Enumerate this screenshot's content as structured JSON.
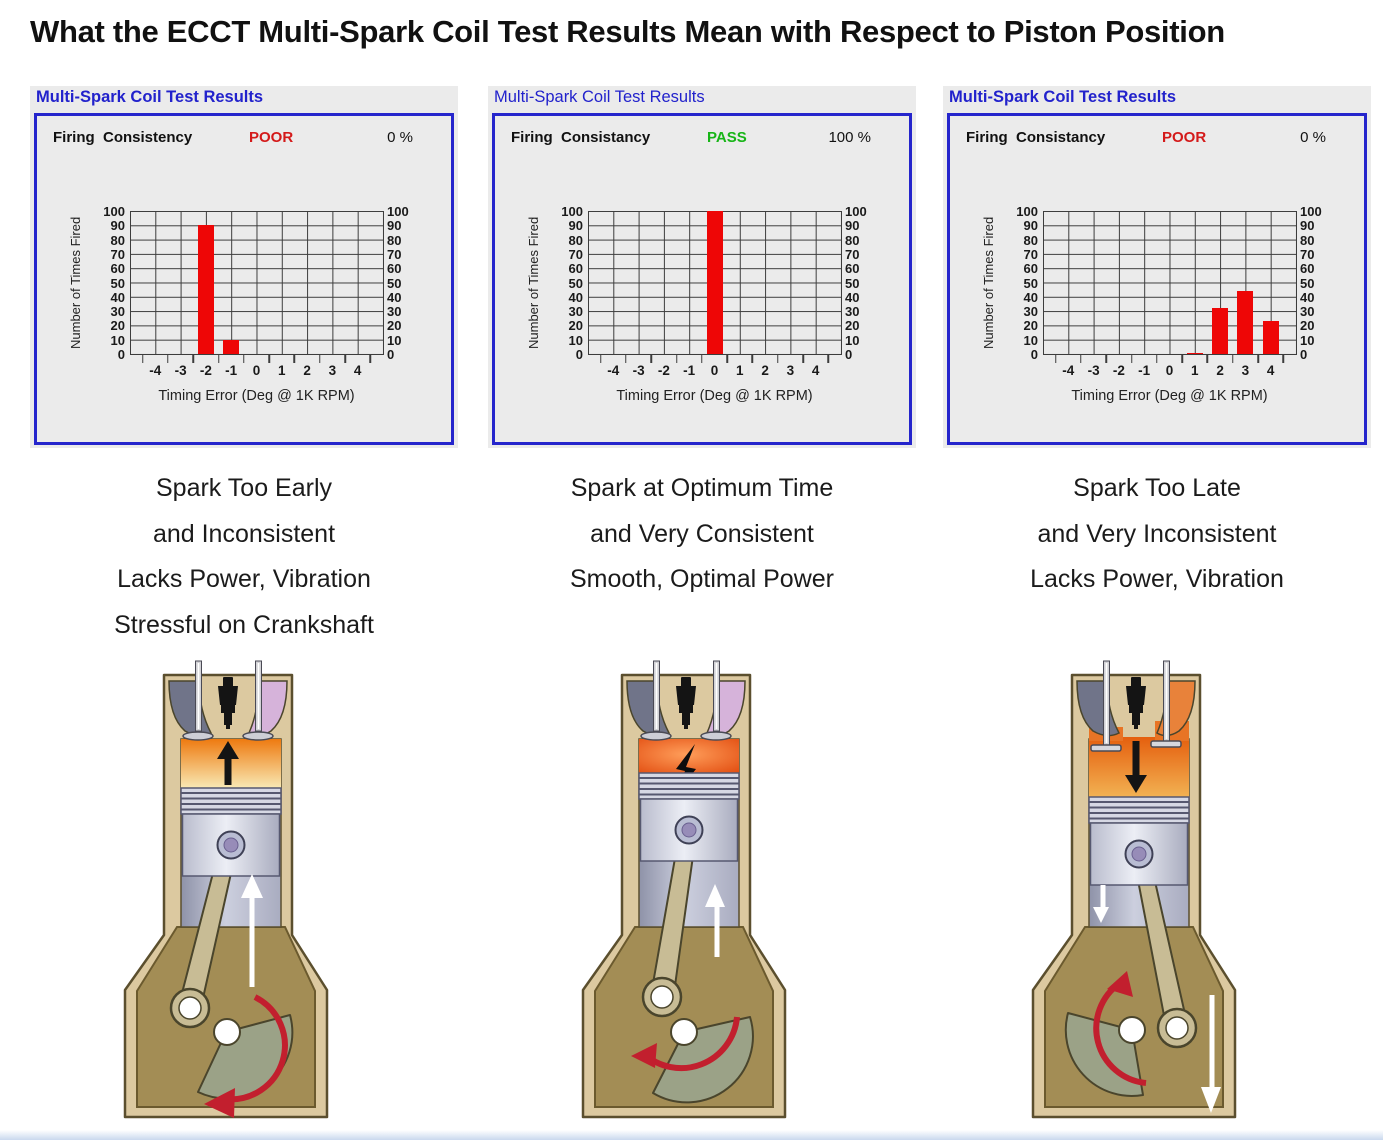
{
  "title": "What the ECCT Multi-Spark Coil Test Results Mean with Respect to Piston Position",
  "panels": [
    {
      "title": "Multi-Spark Coil Test Results",
      "status_label": "Firing  Consistency",
      "status_value": "POOR",
      "status_color": "#d41a1a",
      "percent": "0 %",
      "caption_lines": [
        "Spark Too Early",
        "and Inconsistent",
        "Lacks Power, Vibration",
        "Stressful on Crankshaft"
      ]
    },
    {
      "title": "Multi-Spark Coil Test Results",
      "status_label": "Firing  Consistancy",
      "status_value": "PASS",
      "status_color": "#17b517",
      "percent": "100 %",
      "caption_lines": [
        "Spark at Optimum Time",
        "and Very Consistent",
        "Smooth, Optimal Power"
      ]
    },
    {
      "title": "Multi-Spark Coil Test Results",
      "status_label": "Firing  Consistancy",
      "status_value": "POOR",
      "status_color": "#d41a1a",
      "percent": "0 %",
      "caption_lines": [
        "Spark Too Late",
        "and Very Inconsistent",
        "Lacks Power, Vibration"
      ]
    }
  ],
  "chart_data": [
    {
      "type": "bar",
      "title": "Multi-Spark Coil Test Results — Spark Too Early",
      "categories": [
        "-4",
        "-3",
        "-2",
        "-1",
        "0",
        "1",
        "2",
        "3",
        "4"
      ],
      "values": [
        0,
        0,
        90,
        10,
        0,
        0,
        0,
        0,
        0
      ],
      "xlabel": "Timing Error (Deg @ 1K RPM)",
      "ylabel": "Number of Times Fired",
      "ylim": [
        0,
        100
      ],
      "yticks": [
        0,
        10,
        20,
        30,
        40,
        50,
        60,
        70,
        80,
        90,
        100
      ],
      "bar_color": "#ee0606",
      "grid": true,
      "legend": "none"
    },
    {
      "type": "bar",
      "title": "Multi-Spark Coil Test Results — Spark at Optimum Time",
      "categories": [
        "-4",
        "-3",
        "-2",
        "-1",
        "0",
        "1",
        "2",
        "3",
        "4"
      ],
      "values": [
        0,
        0,
        0,
        0,
        100,
        0,
        0,
        0,
        0
      ],
      "xlabel": "Timing Error (Deg @ 1K RPM)",
      "ylabel": "Number of Times Fired",
      "ylim": [
        0,
        100
      ],
      "yticks": [
        0,
        10,
        20,
        30,
        40,
        50,
        60,
        70,
        80,
        90,
        100
      ],
      "bar_color": "#ee0606",
      "grid": true,
      "legend": "none"
    },
    {
      "type": "bar",
      "title": "Multi-Spark Coil Test Results — Spark Too Late",
      "categories": [
        "-4",
        "-3",
        "-2",
        "-1",
        "0",
        "1",
        "2",
        "3",
        "4"
      ],
      "values": [
        0,
        0,
        0,
        0,
        0,
        1,
        32,
        44,
        23
      ],
      "xlabel": "Timing Error (Deg @ 1K RPM)",
      "ylabel": "Number of Times Fired",
      "ylim": [
        0,
        100
      ],
      "yticks": [
        0,
        10,
        20,
        30,
        40,
        50,
        60,
        70,
        80,
        90,
        100
      ],
      "bar_color": "#ee0606",
      "grid": true,
      "legend": "none"
    }
  ],
  "diagrams": [
    {
      "name": "piston-spark-too-early",
      "piston_motion": "up",
      "spark": "none",
      "crank_rotation": "counterclockwise"
    },
    {
      "name": "piston-spark-optimum",
      "piston_motion": "up",
      "spark": "firing",
      "crank_rotation": "counterclockwise"
    },
    {
      "name": "piston-spark-too-late",
      "piston_motion": "down",
      "spark": "none",
      "crank_rotation": "counterclockwise"
    }
  ],
  "colors": {
    "panel_bg": "#ebebeb",
    "panel_border": "#2525cc",
    "panel_title": "#2222cc",
    "bar": "#ee0606",
    "poor": "#d41a1a",
    "pass": "#17b517"
  }
}
